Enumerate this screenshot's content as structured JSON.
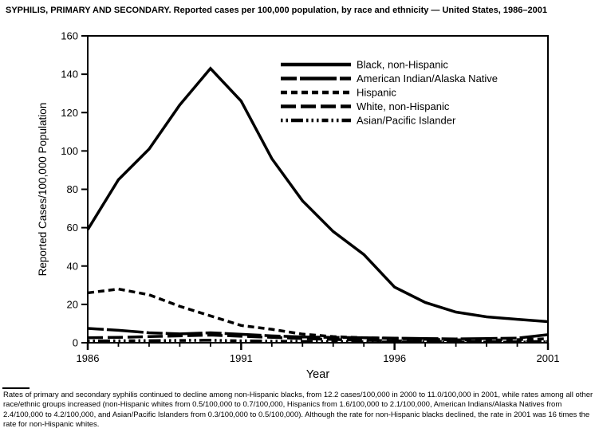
{
  "chart_data": {
    "type": "line",
    "title": "SYPHILIS, PRIMARY AND SECONDARY. Reported cases per 100,000 population, by race and ethnicity — United States, 1986–2001",
    "xlabel": "Year",
    "ylabel": "Reported Cases/100,000 Population",
    "x": [
      1986,
      1987,
      1988,
      1989,
      1990,
      1991,
      1992,
      1993,
      1994,
      1995,
      1996,
      1997,
      1998,
      1999,
      2000,
      2001
    ],
    "xlim": [
      1986,
      2001
    ],
    "ylim": [
      0,
      160
    ],
    "yticks": [
      0,
      20,
      40,
      60,
      80,
      100,
      120,
      140,
      160
    ],
    "xticks_labeled": [
      1986,
      1991,
      1996,
      2001
    ],
    "grid": false,
    "line_color": "#000000",
    "legend_position": "upper right inside plot",
    "series": [
      {
        "name": "Black, non-Hispanic",
        "line_style": "solid",
        "dash": "",
        "values": [
          59,
          85,
          101,
          124,
          143,
          126,
          96,
          74,
          58,
          46,
          29,
          21,
          16,
          13.5,
          12.2,
          11.0
        ]
      },
      {
        "name": "American Indian/Alaska Native",
        "line_style": "long-dash-long-solid",
        "dash": "20,4,46,4",
        "values": [
          7.5,
          6.5,
          5.2,
          4.6,
          5.2,
          4.4,
          3.6,
          3.0,
          2.8,
          2.6,
          2.4,
          2.2,
          2.0,
          2.2,
          2.4,
          4.2
        ]
      },
      {
        "name": "Hispanic",
        "line_style": "short-dash",
        "dash": "8,5",
        "values": [
          26,
          28,
          25,
          19,
          14,
          9,
          7,
          4.5,
          3.2,
          2.6,
          2.2,
          1.8,
          1.5,
          1.4,
          1.6,
          2.1
        ]
      },
      {
        "name": "White, non-Hispanic",
        "line_style": "long-dash",
        "dash": "19,6",
        "values": [
          2.6,
          2.8,
          3.2,
          3.6,
          4.0,
          3.4,
          2.8,
          2.2,
          1.7,
          1.3,
          1.0,
          0.8,
          0.6,
          0.5,
          0.5,
          0.7
        ]
      },
      {
        "name": "Asian/Pacific Islander",
        "line_style": "dot-dot-dash-dot-dot-dot-dash",
        "dash": "2.5,4,2.5,4,15,4,2.5,4,2.5,4,2.5,4,8,4",
        "values": [
          0.9,
          1.0,
          1.1,
          1.2,
          1.3,
          1.0,
          0.8,
          0.7,
          0.6,
          0.5,
          0.4,
          0.4,
          0.4,
          0.3,
          0.3,
          0.5
        ]
      }
    ]
  },
  "footnote": "Rates of primary and secondary syphilis continued to decline among non-Hispanic blacks, from 12.2 cases/100,000 in 2000 to 11.0/100,000 in 2001, while rates among all other race/ethnic groups increased (non-Hispanic whites from 0.5/100,000 to 0.7/100,000, Hispanics from 1.6/100,000 to 2.1/100,000, American Indians/Alaska Natives from 2.4/100,000 to 4.2/100,000, and Asian/Pacific Islanders from 0.3/100,000 to 0.5/100,000). Although the rate for non-Hispanic blacks declined, the rate in 2001 was 16 times the rate for non-Hispanic whites."
}
